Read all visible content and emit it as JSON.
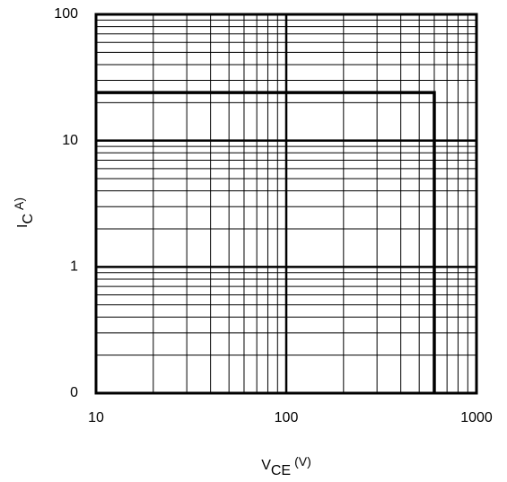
{
  "chart_data": {
    "type": "line",
    "xlabel": {
      "main": "V",
      "sub": "CE",
      "unit": "(V)"
    },
    "ylabel": {
      "main": "I",
      "sub": "C",
      "unit": "A)"
    },
    "xscale": "log",
    "yscale": "log",
    "grid": true,
    "xlim": [
      10,
      1000
    ],
    "xticks": [
      10,
      100,
      1000
    ],
    "ylim": [
      0.1,
      100
    ],
    "yticks": [
      {
        "value": 0.1,
        "label": "0"
      },
      1,
      10,
      100
    ],
    "x": [
      10,
      600,
      600
    ],
    "series": [
      {
        "color": "#000000",
        "values": [
          24,
          24,
          0.1
        ]
      }
    ]
  }
}
